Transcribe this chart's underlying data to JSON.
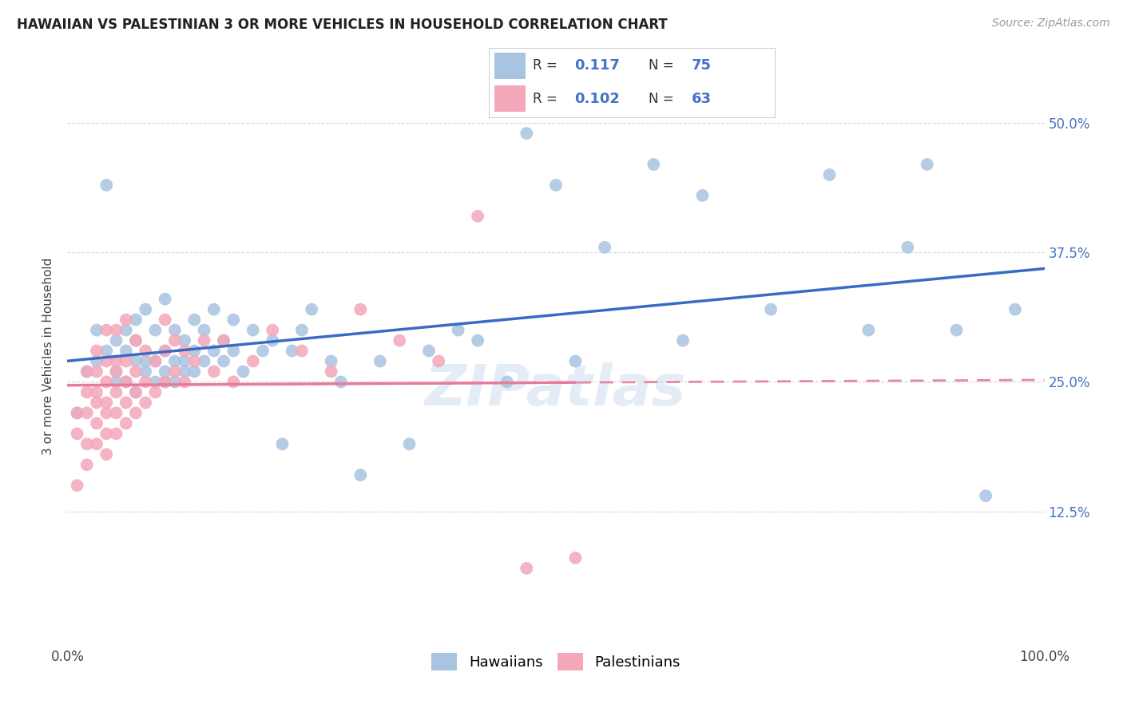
{
  "title": "HAWAIIAN VS PALESTINIAN 3 OR MORE VEHICLES IN HOUSEHOLD CORRELATION CHART",
  "source": "Source: ZipAtlas.com",
  "ylabel": "3 or more Vehicles in Household",
  "ytick_labels": [
    "12.5%",
    "25.0%",
    "37.5%",
    "50.0%"
  ],
  "ytick_values": [
    0.125,
    0.25,
    0.375,
    0.5
  ],
  "hawaiian_color": "#a8c4e0",
  "palestinian_color": "#f4a7b9",
  "hawaiian_line_color": "#3a6bc4",
  "palestinian_line_color": "#e87a9a",
  "R_hawaiian": 0.117,
  "N_hawaiian": 75,
  "R_palestinian": 0.102,
  "N_palestinian": 63,
  "hawaiian_x": [
    0.01,
    0.02,
    0.03,
    0.03,
    0.04,
    0.04,
    0.05,
    0.05,
    0.05,
    0.06,
    0.06,
    0.06,
    0.07,
    0.07,
    0.07,
    0.07,
    0.08,
    0.08,
    0.08,
    0.09,
    0.09,
    0.09,
    0.1,
    0.1,
    0.1,
    0.1,
    0.11,
    0.11,
    0.11,
    0.12,
    0.12,
    0.12,
    0.13,
    0.13,
    0.13,
    0.14,
    0.14,
    0.15,
    0.15,
    0.16,
    0.16,
    0.17,
    0.17,
    0.18,
    0.19,
    0.2,
    0.21,
    0.22,
    0.23,
    0.24,
    0.25,
    0.27,
    0.28,
    0.3,
    0.32,
    0.35,
    0.37,
    0.4,
    0.42,
    0.45,
    0.47,
    0.5,
    0.52,
    0.55,
    0.6,
    0.63,
    0.65,
    0.72,
    0.78,
    0.82,
    0.86,
    0.88,
    0.91,
    0.94,
    0.97
  ],
  "hawaiian_y": [
    0.22,
    0.26,
    0.3,
    0.27,
    0.44,
    0.28,
    0.29,
    0.25,
    0.26,
    0.3,
    0.28,
    0.25,
    0.31,
    0.27,
    0.29,
    0.24,
    0.32,
    0.27,
    0.26,
    0.3,
    0.27,
    0.25,
    0.33,
    0.28,
    0.26,
    0.25,
    0.3,
    0.27,
    0.25,
    0.29,
    0.27,
    0.26,
    0.31,
    0.28,
    0.26,
    0.3,
    0.27,
    0.32,
    0.28,
    0.29,
    0.27,
    0.31,
    0.28,
    0.26,
    0.3,
    0.28,
    0.29,
    0.19,
    0.28,
    0.3,
    0.32,
    0.27,
    0.25,
    0.16,
    0.27,
    0.19,
    0.28,
    0.3,
    0.29,
    0.25,
    0.49,
    0.44,
    0.27,
    0.38,
    0.46,
    0.29,
    0.43,
    0.32,
    0.45,
    0.3,
    0.38,
    0.46,
    0.3,
    0.14,
    0.32
  ],
  "palestinian_x": [
    0.01,
    0.01,
    0.01,
    0.02,
    0.02,
    0.02,
    0.02,
    0.02,
    0.03,
    0.03,
    0.03,
    0.03,
    0.03,
    0.03,
    0.04,
    0.04,
    0.04,
    0.04,
    0.04,
    0.04,
    0.04,
    0.05,
    0.05,
    0.05,
    0.05,
    0.05,
    0.05,
    0.06,
    0.06,
    0.06,
    0.06,
    0.06,
    0.07,
    0.07,
    0.07,
    0.07,
    0.08,
    0.08,
    0.08,
    0.09,
    0.09,
    0.1,
    0.1,
    0.1,
    0.11,
    0.11,
    0.12,
    0.12,
    0.13,
    0.14,
    0.15,
    0.16,
    0.17,
    0.19,
    0.21,
    0.24,
    0.27,
    0.3,
    0.34,
    0.38,
    0.42,
    0.47,
    0.52
  ],
  "palestinian_y": [
    0.2,
    0.22,
    0.15,
    0.26,
    0.22,
    0.19,
    0.24,
    0.17,
    0.28,
    0.23,
    0.21,
    0.19,
    0.26,
    0.24,
    0.3,
    0.27,
    0.23,
    0.22,
    0.25,
    0.2,
    0.18,
    0.3,
    0.27,
    0.24,
    0.22,
    0.26,
    0.2,
    0.31,
    0.27,
    0.25,
    0.23,
    0.21,
    0.29,
    0.26,
    0.24,
    0.22,
    0.28,
    0.25,
    0.23,
    0.27,
    0.24,
    0.31,
    0.28,
    0.25,
    0.29,
    0.26,
    0.28,
    0.25,
    0.27,
    0.29,
    0.26,
    0.29,
    0.25,
    0.27,
    0.3,
    0.28,
    0.26,
    0.32,
    0.29,
    0.27,
    0.41,
    0.07,
    0.08
  ],
  "xlim": [
    0.0,
    1.0
  ],
  "ylim": [
    0.0,
    0.55
  ],
  "background_color": "#ffffff",
  "grid_color": "#d8d8d8",
  "title_fontsize": 12,
  "axis_fontsize": 12,
  "legend_fontsize": 13
}
